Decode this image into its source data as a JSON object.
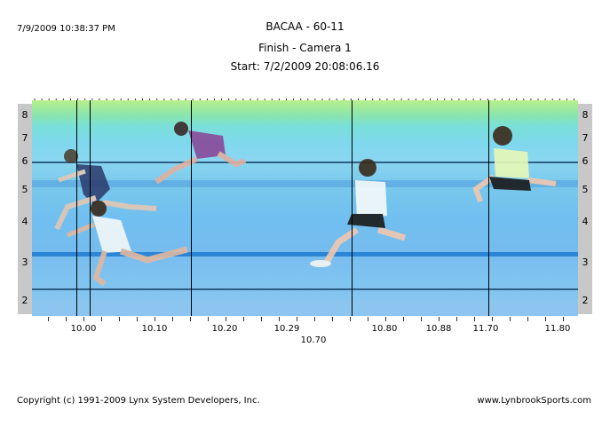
{
  "header": {
    "timestamp": "7/9/2009 10:38:37 PM",
    "event": "BACAA - 60-11",
    "camera": "Finish - Camera 1",
    "start": "Start: 7/2/2009 20:08:06.16"
  },
  "lanes": [
    "8",
    "7",
    "6",
    "5",
    "4",
    "3",
    "2"
  ],
  "time_labels": [
    "10.00",
    "10.10",
    "10.20",
    "10.29",
    "10.70",
    "10.80",
    "10.88",
    "11.70",
    "11.80"
  ],
  "footer": {
    "copyright": "Copyright (c) 1991-2009 Lynx System Developers, Inc.",
    "site": "www.LynbrookSports.com"
  }
}
